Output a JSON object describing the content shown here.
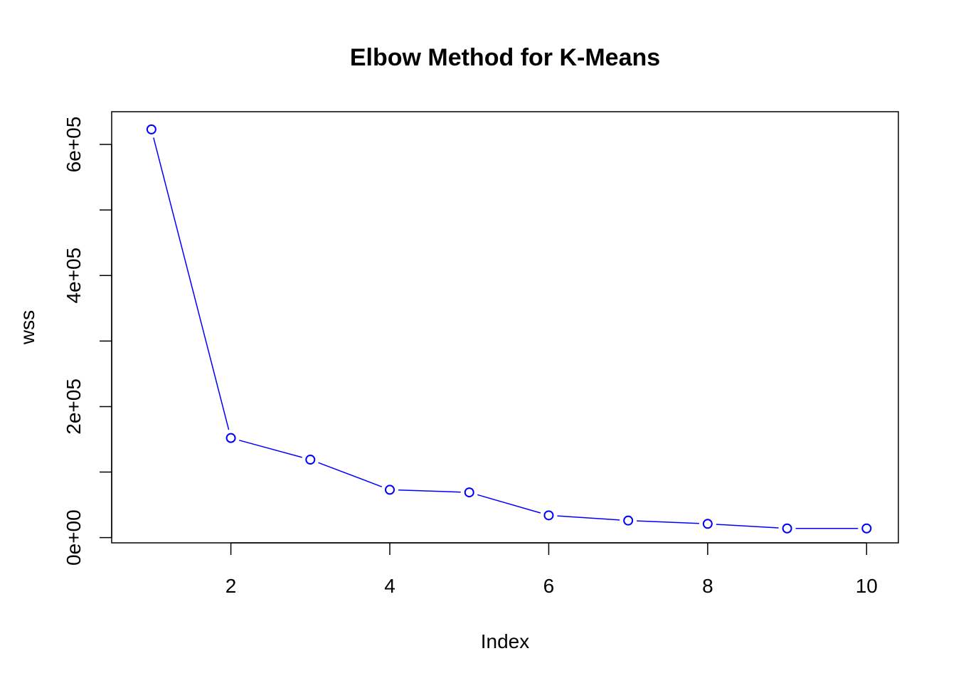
{
  "chart_data": {
    "type": "line",
    "title": "Elbow Method for K-Means",
    "xlabel": "Index",
    "ylabel": "wss",
    "x": [
      1,
      2,
      3,
      4,
      5,
      6,
      7,
      8,
      9,
      10
    ],
    "series": [
      {
        "values": [
          623000,
          152000,
          119000,
          73000,
          69000,
          34000,
          26000,
          21000,
          14000,
          14000
        ],
        "color": "#0000ff",
        "marker": "open-circle",
        "line": "line-with-gaps"
      }
    ],
    "xlim": [
      0.5,
      10.4
    ],
    "ylim": [
      -8000,
      650000
    ],
    "xticks": [
      2,
      4,
      6,
      8,
      10
    ],
    "xtick_labels": [
      "2",
      "4",
      "6",
      "8",
      "10"
    ],
    "yticks": [
      0,
      100000,
      200000,
      300000,
      400000,
      500000,
      600000
    ],
    "ytick_labels": [
      "0e+00",
      "",
      "2e+05",
      "",
      "4e+05",
      "",
      "6e+05"
    ],
    "grid": false,
    "legend": "none"
  }
}
